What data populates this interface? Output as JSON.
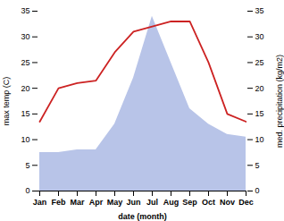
{
  "chart_data": {
    "type": "line",
    "categories": [
      "Jan",
      "Feb",
      "Mar",
      "Apr",
      "May",
      "Jun",
      "Jul",
      "Aug",
      "Sep",
      "Oct",
      "Nov",
      "Dec"
    ],
    "series": [
      {
        "type": "area",
        "color": "#b8c4e8",
        "axis": "y2",
        "values": [
          7.5,
          7.5,
          8.0,
          8.0,
          13.0,
          22.0,
          34.0,
          25.0,
          16.0,
          13.0,
          11.0,
          10.5
        ]
      },
      {
        "type": "line",
        "color": "#cc2222",
        "values": [
          13.5,
          20.0,
          21.0,
          21.5,
          27.0,
          31.0,
          32.0,
          33.0,
          33.0,
          25.0,
          15.0,
          13.5
        ]
      }
    ],
    "xlabel": "date (month)",
    "ylabel": "max temp (C)",
    "y2label": "med. precipitation (kg/m2)",
    "ylim": [
      0,
      35
    ],
    "yticks": [
      0,
      5,
      10,
      15,
      20,
      25,
      30,
      35
    ],
    "y2lim": [
      0,
      35
    ],
    "y2ticks": [
      0,
      5,
      10,
      15,
      20,
      25,
      30,
      35
    ],
    "grid": false
  }
}
